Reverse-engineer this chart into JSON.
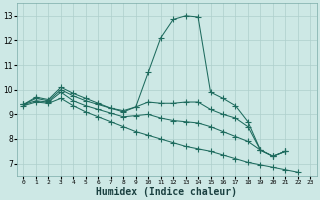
{
  "background_color": "#cde8e5",
  "grid_color": "#aecfcc",
  "line_color": "#1e6b5e",
  "xlabel": "Humidex (Indice chaleur)",
  "xlabel_fontsize": 7,
  "yticks": [
    7,
    8,
    9,
    10,
    11,
    12,
    13
  ],
  "xticks": [
    0,
    1,
    2,
    3,
    4,
    5,
    6,
    7,
    8,
    9,
    10,
    11,
    12,
    13,
    14,
    15,
    16,
    17,
    18,
    19,
    20,
    21,
    22,
    23
  ],
  "xlim": [
    -0.5,
    23.5
  ],
  "ylim": [
    6.5,
    13.5
  ],
  "series1_x": [
    0,
    1,
    2,
    3,
    4,
    5,
    6,
    7,
    8,
    9,
    10,
    11,
    12,
    13,
    14,
    15,
    16,
    17,
    18,
    19,
    20,
    21
  ],
  "series1_y": [
    9.4,
    9.7,
    9.6,
    10.1,
    9.85,
    9.65,
    9.45,
    9.25,
    9.15,
    9.3,
    10.7,
    12.1,
    12.85,
    13.0,
    12.95,
    9.9,
    9.65,
    9.35,
    8.7,
    7.55,
    7.3,
    7.5
  ],
  "series2_x": [
    0,
    1,
    2,
    3,
    4,
    5,
    6,
    7,
    8,
    9,
    10,
    11,
    12,
    13,
    14,
    15,
    16,
    17,
    18,
    19,
    20,
    21
  ],
  "series2_y": [
    9.4,
    9.65,
    9.55,
    10.0,
    9.75,
    9.55,
    9.4,
    9.25,
    9.1,
    9.3,
    9.5,
    9.45,
    9.45,
    9.5,
    9.5,
    9.2,
    9.0,
    8.85,
    8.5,
    7.55,
    7.3,
    7.5
  ],
  "series3_x": [
    0,
    1,
    2,
    3,
    4,
    5,
    6,
    7,
    8,
    9,
    10,
    11,
    12,
    13,
    14,
    15,
    16,
    17,
    18,
    19,
    20,
    21
  ],
  "series3_y": [
    9.4,
    9.55,
    9.5,
    9.9,
    9.55,
    9.35,
    9.2,
    9.05,
    8.9,
    8.95,
    9.0,
    8.85,
    8.75,
    8.7,
    8.65,
    8.5,
    8.3,
    8.1,
    7.9,
    7.55,
    7.3,
    7.5
  ],
  "series4_x": [
    0,
    1,
    2,
    3,
    4,
    5,
    6,
    7,
    8,
    9,
    10,
    11,
    12,
    13,
    14,
    15,
    16,
    17,
    18,
    19,
    20,
    21,
    22
  ],
  "series4_y": [
    9.35,
    9.5,
    9.45,
    9.65,
    9.35,
    9.1,
    8.9,
    8.7,
    8.5,
    8.3,
    8.15,
    8.0,
    7.85,
    7.7,
    7.6,
    7.5,
    7.35,
    7.2,
    7.05,
    6.95,
    6.85,
    6.75,
    6.65
  ],
  "markersize": 1.8,
  "linewidth": 0.75
}
